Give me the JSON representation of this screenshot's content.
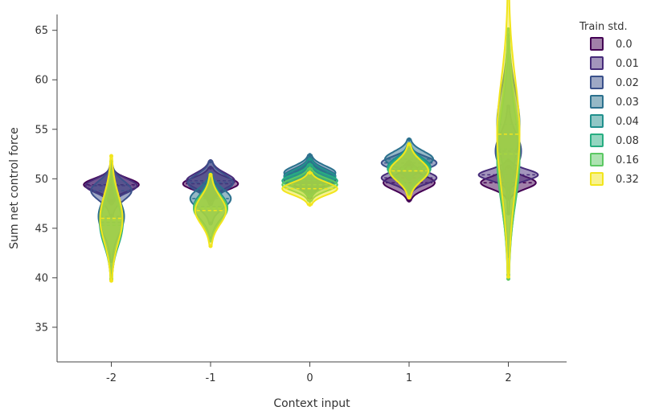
{
  "chart_data": {
    "type": "violin",
    "xlabel": "Context input",
    "ylabel": "Sum net control force",
    "categories": [
      "-2",
      "-1",
      "0",
      "1",
      "2"
    ],
    "y_ticks": [
      35,
      40,
      45,
      50,
      55,
      60,
      65
    ],
    "ylim": [
      31.5,
      66.6
    ],
    "grid": false,
    "legend": {
      "title": "Train std.",
      "placement": "right"
    },
    "series": [
      {
        "name": "0.0",
        "color": "#440154",
        "medians": [
          49.4,
          49.5,
          49.9,
          49.6,
          49.6
        ],
        "spreads": [
          0.9,
          0.9,
          1.0,
          1.0,
          0.9
        ]
      },
      {
        "name": "0.01",
        "color": "#472c7a",
        "medians": [
          49.3,
          49.8,
          50.0,
          50.1,
          50.4
        ],
        "spreads": [
          1.0,
          1.1,
          1.0,
          0.9,
          0.8
        ]
      },
      {
        "name": "0.02",
        "color": "#3b518b",
        "medians": [
          48.8,
          49.6,
          50.3,
          51.6,
          52.8
        ],
        "spreads": [
          1.4,
          1.2,
          1.0,
          0.9,
          2.5
        ]
      },
      {
        "name": "0.03",
        "color": "#2c718e",
        "medians": [
          46.2,
          48.0,
          50.6,
          52.0,
          55.5
        ],
        "spreads": [
          2.5,
          1.4,
          1.0,
          1.1,
          5.0
        ]
      },
      {
        "name": "0.04",
        "color": "#21908d",
        "medians": [
          45.6,
          47.2,
          50.2,
          51.2,
          53.0
        ],
        "spreads": [
          2.8,
          1.8,
          1.0,
          1.3,
          6.0
        ]
      },
      {
        "name": "0.08",
        "color": "#27ad81",
        "medians": [
          45.3,
          47.0,
          49.8,
          51.0,
          52.0
        ],
        "spreads": [
          3.0,
          1.8,
          0.9,
          1.3,
          6.5
        ]
      },
      {
        "name": "0.16",
        "color": "#5cc863",
        "medians": [
          45.8,
          47.0,
          49.4,
          50.8,
          52.5
        ],
        "spreads": [
          3.3,
          1.8,
          0.9,
          1.4,
          7.0
        ]
      },
      {
        "name": "0.32",
        "color": "#f2e51d",
        "medians": [
          46.0,
          46.8,
          49.0,
          50.8,
          54.5
        ],
        "spreads": [
          3.5,
          2.0,
          0.9,
          1.5,
          8.0
        ]
      }
    ]
  }
}
